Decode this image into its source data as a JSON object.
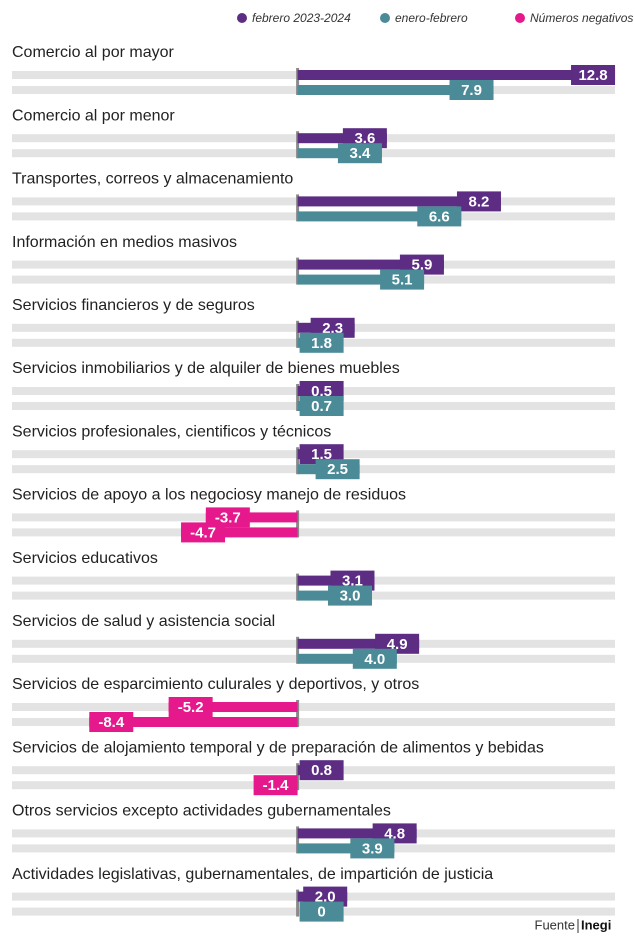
{
  "chart_data": {
    "type": "bar",
    "orientation": "horizontal",
    "categories": [
      "Comercio al por mayor",
      "Comercio al por menor",
      "Transportes, correos y almacenamiento",
      "Información en medios masivos",
      "Servicios financieros y de seguros",
      "Servicios inmobiliarios y de alquiler de bienes muebles",
      "Servicios profesionales, cientificos y técnicos",
      "Servicios de apoyo a los negociosy manejo de residuos",
      "Servicios educativos",
      "Servicios de salud y asistencia social",
      "Servicios de esparcimiento culurales y deportivos, y otros",
      "Servicios de alojamiento temporal y de preparación de alimentos y bebidas",
      "Otros servicios excepto actividades gubernamentales",
      "Actividades legislativas, gubernamentales, de impartición de justicia"
    ],
    "series": [
      {
        "name": "febrero 2023-2024",
        "color": "#5c2d83",
        "values": [
          12.8,
          3.6,
          8.2,
          5.9,
          2.3,
          0.5,
          1.5,
          -3.7,
          3.1,
          4.9,
          -5.2,
          0.8,
          4.8,
          2.0
        ],
        "value_labels": [
          "12.8",
          "3.6",
          "8.2",
          "5.9",
          "2.3",
          "0.5",
          "1.5",
          "-3.7",
          "3.1",
          "4.9",
          "-5.2",
          "0.8",
          "4.8",
          "2.0"
        ]
      },
      {
        "name": "enero-febrero",
        "color": "#4b8b97",
        "values": [
          7.9,
          3.4,
          6.6,
          5.1,
          1.8,
          0.7,
          2.5,
          -4.7,
          3.0,
          4.0,
          -8.4,
          -1.4,
          3.9,
          0
        ],
        "value_labels": [
          "7.9",
          "3.4",
          "6.6",
          "5.1",
          "1.8",
          "0.7",
          "2.5",
          "-4.7",
          "3.0",
          "4.0",
          "-8.4",
          "-1.4",
          "3.9",
          "0"
        ]
      }
    ],
    "negative_label": "Números negativos",
    "negative_color": "#e5198b",
    "xlim": [
      -12,
      13
    ],
    "source": "Fuente",
    "source_name": "Inegi"
  }
}
